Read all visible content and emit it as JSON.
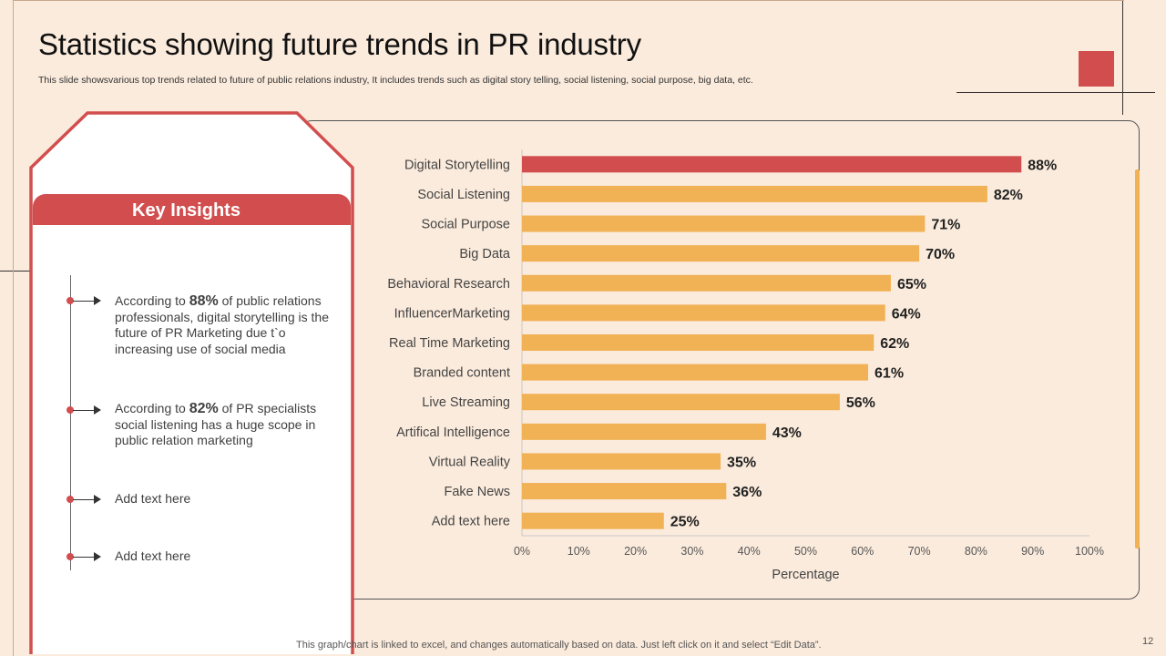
{
  "title": "Statistics showing future trends in PR industry",
  "subtitle": "This slide showsvarious top trends related to future of public relations industry, It includes trends such as digital story telling, social listening, social purpose, big data, etc.",
  "insights": {
    "heading": "Key Insights",
    "items": [
      {
        "pre": "According to ",
        "value": "88%",
        "post": " of public relations professionals, digital storytelling is the future of PR Marketing  due t`o increasing use of social media"
      },
      {
        "pre": "According to ",
        "value": "82%",
        "post": " of PR specialists social listening has a huge scope in public relation marketing"
      },
      {
        "text": "Add text here"
      },
      {
        "text": "Add text here"
      }
    ]
  },
  "footer_note": "This graph/chart is linked to excel,  and changes automatically based on data. Just left click on it and select “Edit Data”.",
  "page_number": "12",
  "colors": {
    "background": "#FBEBDC",
    "accent_red": "#D24E4E",
    "bar_orange": "#F1B155",
    "highlight_bar": "#D24E4E"
  },
  "chart_data": {
    "type": "bar",
    "orientation": "horizontal",
    "categories": [
      "Digital Storytelling",
      "Social Listening",
      "Social Purpose",
      "Big Data",
      "Behavioral Research",
      "InfluencerMarketing",
      "Real Time Marketing",
      "Branded content",
      "Live Streaming",
      "Artifical Intelligence",
      "Virtual Reality",
      "Fake News",
      "Add text here"
    ],
    "values": [
      88,
      82,
      71,
      70,
      65,
      64,
      62,
      61,
      56,
      43,
      35,
      36,
      25
    ],
    "value_labels": [
      "88%",
      "82%",
      "71%",
      "70%",
      "65%",
      "64%",
      "62%",
      "61%",
      "56%",
      "43%",
      "35%",
      "36%",
      "25%"
    ],
    "highlight_index": 0,
    "xlabel": "Percentage",
    "ylabel": "",
    "xlim": [
      0,
      100
    ],
    "x_ticks": [
      "0%",
      "10%",
      "20%",
      "30%",
      "40%",
      "50%",
      "60%",
      "70%",
      "80%",
      "90%",
      "100%"
    ],
    "grid": false,
    "legend": "none"
  }
}
